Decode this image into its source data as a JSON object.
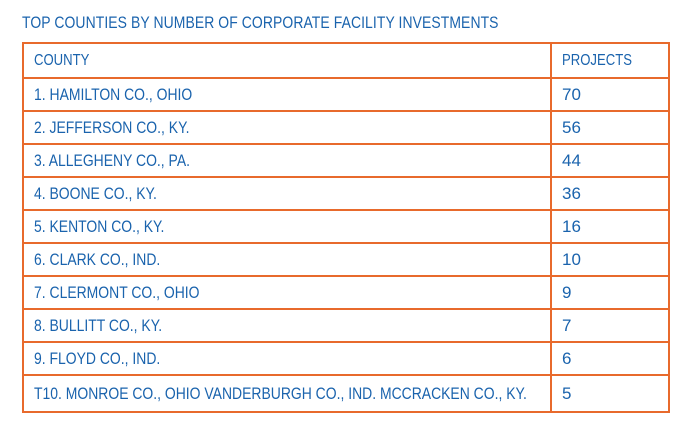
{
  "title": "TOP COUNTIES BY NUMBER OF CORPORATE FACILITY INVESTMENTS",
  "columns": [
    "COUNTY",
    "PROJECTS"
  ],
  "rows": [
    {
      "county": "1. HAMILTON CO., OHIO",
      "projects": "70"
    },
    {
      "county": "2. JEFFERSON CO., KY.",
      "projects": "56"
    },
    {
      "county": "3. ALLEGHENY CO., PA.",
      "projects": "44"
    },
    {
      "county": "4. BOONE CO., KY.",
      "projects": "36"
    },
    {
      "county": "5. KENTON CO., KY.",
      "projects": "16"
    },
    {
      "county": "6. CLARK CO., IND.",
      "projects": "10"
    },
    {
      "county": "7. CLERMONT CO., OHIO",
      "projects": "9"
    },
    {
      "county": "8. BULLITT CO., KY.",
      "projects": "7"
    },
    {
      "county": "9. FLOYD CO., IND.",
      "projects": "6"
    },
    {
      "county": "T10. MONROE CO., OHIO VANDERBURGH CO., IND. MCCRACKEN CO., KY.",
      "projects": "5"
    }
  ],
  "colors": {
    "text": "#1a63ad",
    "border": "#e86a2c"
  }
}
